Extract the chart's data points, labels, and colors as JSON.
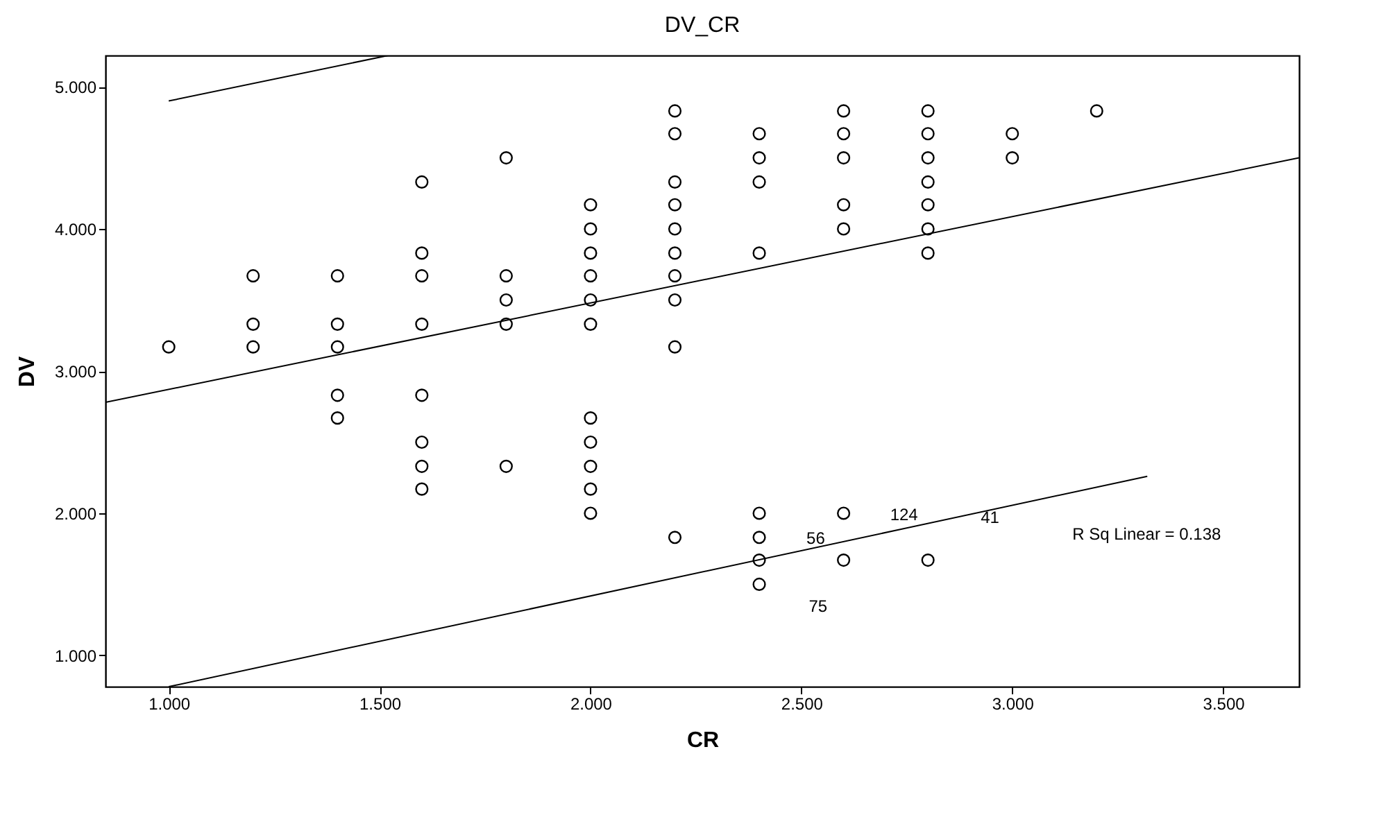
{
  "chart_data": {
    "type": "scatter",
    "title": "DV_CR",
    "xlabel": "CR",
    "ylabel": "DV",
    "xlim": [
      0.85,
      3.68
    ],
    "ylim": [
      0.78,
      5.22
    ],
    "xticks": [
      {
        "value": 1,
        "label": "1.000"
      },
      {
        "value": 1.5,
        "label": "1.500"
      },
      {
        "value": 2,
        "label": "2.000"
      },
      {
        "value": 2.5,
        "label": "2.500"
      },
      {
        "value": 3,
        "label": "3.000"
      },
      {
        "value": 3.5,
        "label": "3.500"
      }
    ],
    "yticks": [
      {
        "value": 1,
        "label": "1.000"
      },
      {
        "value": 2,
        "label": "2.000"
      },
      {
        "value": 3,
        "label": "3.000"
      },
      {
        "value": 4,
        "label": "4.000"
      },
      {
        "value": 5,
        "label": "5.000"
      }
    ],
    "grid": false,
    "line_style": "solid",
    "series": [
      {
        "color": "#000000",
        "marker": "circle",
        "x": [
          1.0,
          1.2,
          1.2,
          1.2,
          1.4,
          1.4,
          1.4,
          1.4,
          1.4,
          1.6,
          1.6,
          1.6,
          1.6,
          1.6,
          1.6,
          1.6,
          1.6,
          1.8,
          1.8,
          1.8,
          1.8,
          1.8,
          2.0,
          2.0,
          2.0,
          2.0,
          2.0,
          2.0,
          2.0,
          2.0,
          2.0,
          2.0,
          2.0,
          2.2,
          2.2,
          2.2,
          2.2,
          2.2,
          2.2,
          2.2,
          2.2,
          2.2,
          2.2,
          2.4,
          2.4,
          2.4,
          2.4,
          2.4,
          2.4,
          2.4,
          2.4,
          2.6,
          2.6,
          2.6,
          2.6,
          2.6,
          2.6,
          2.6,
          2.8,
          2.8,
          2.8,
          2.8,
          2.8,
          2.8,
          2.8,
          2.8,
          3.0,
          3.0,
          3.2
        ],
        "values": [
          3.17,
          3.67,
          3.33,
          3.17,
          3.67,
          3.33,
          3.17,
          2.83,
          2.67,
          4.33,
          3.83,
          3.67,
          3.33,
          2.83,
          2.5,
          2.33,
          2.17,
          4.5,
          3.67,
          3.5,
          3.33,
          2.33,
          4.17,
          4.0,
          3.83,
          3.67,
          3.5,
          3.33,
          2.67,
          2.5,
          2.33,
          2.17,
          2.0,
          4.83,
          4.67,
          4.33,
          4.17,
          4.0,
          3.83,
          3.67,
          3.5,
          3.17,
          1.83,
          4.67,
          4.5,
          4.33,
          3.83,
          2.0,
          1.83,
          1.67,
          1.5,
          4.83,
          4.67,
          4.5,
          4.17,
          4.0,
          2.0,
          1.67,
          4.83,
          4.67,
          4.5,
          4.33,
          4.17,
          4.0,
          3.83,
          1.67,
          4.67,
          4.5,
          4.83
        ]
      },
      {
        "type": "line",
        "color": "#000000",
        "x": [
          0.85,
          3.68
        ],
        "values": [
          2.78,
          4.5
        ]
      },
      {
        "type": "line",
        "color": "#000000",
        "x": [
          1.0,
          1.52
        ],
        "values": [
          4.9,
          5.22
        ]
      },
      {
        "type": "line",
        "color": "#000000",
        "x": [
          1.0,
          3.32
        ],
        "values": [
          0.78,
          2.26
        ]
      }
    ],
    "annotations": [
      "56",
      "75",
      "124",
      "41",
      "R Sq Linear = 0.138"
    ]
  }
}
